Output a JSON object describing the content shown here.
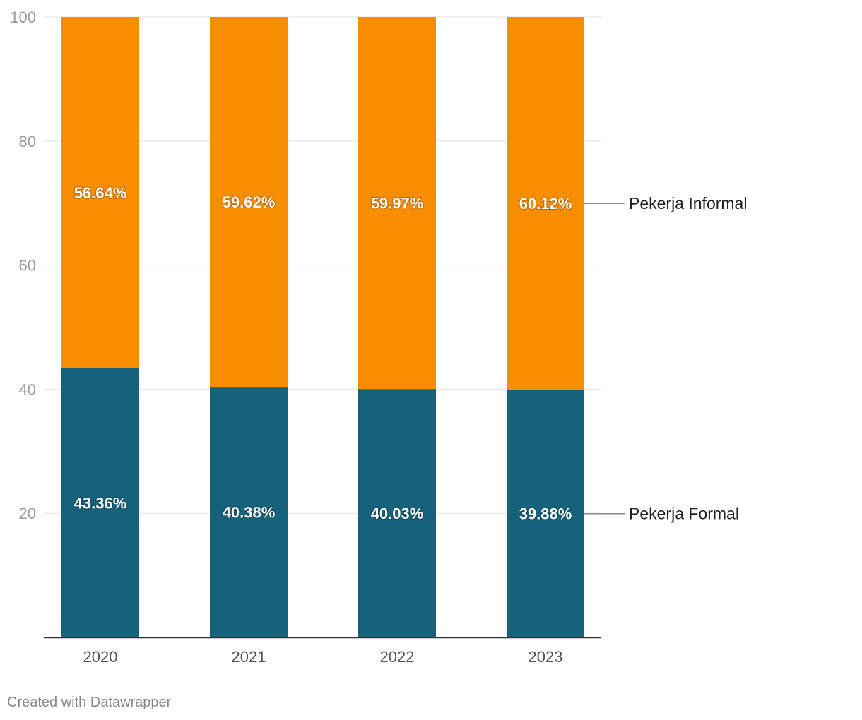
{
  "chart_data": {
    "type": "bar",
    "stacked": true,
    "categories": [
      "2020",
      "2021",
      "2022",
      "2023"
    ],
    "series": [
      {
        "name": "Pekerja Formal",
        "values": [
          43.36,
          40.38,
          40.03,
          39.88
        ],
        "labels": [
          "43.36%",
          "40.38%",
          "40.03%",
          "39.88%"
        ],
        "color": "#16627b"
      },
      {
        "name": "Pekerja Informal",
        "values": [
          56.64,
          59.62,
          59.97,
          60.12
        ],
        "labels": [
          "56.64%",
          "59.62%",
          "59.97%",
          "60.12%"
        ],
        "color": "#f78d00"
      }
    ],
    "ylim": [
      0,
      100
    ],
    "yticks": [
      20,
      40,
      60,
      80,
      100
    ],
    "ytick_labels": [
      "20",
      "40",
      "60",
      "80",
      "100"
    ],
    "grid": true,
    "legend": "right, inline"
  },
  "footer": {
    "credit": "Created with Datawrapper"
  }
}
